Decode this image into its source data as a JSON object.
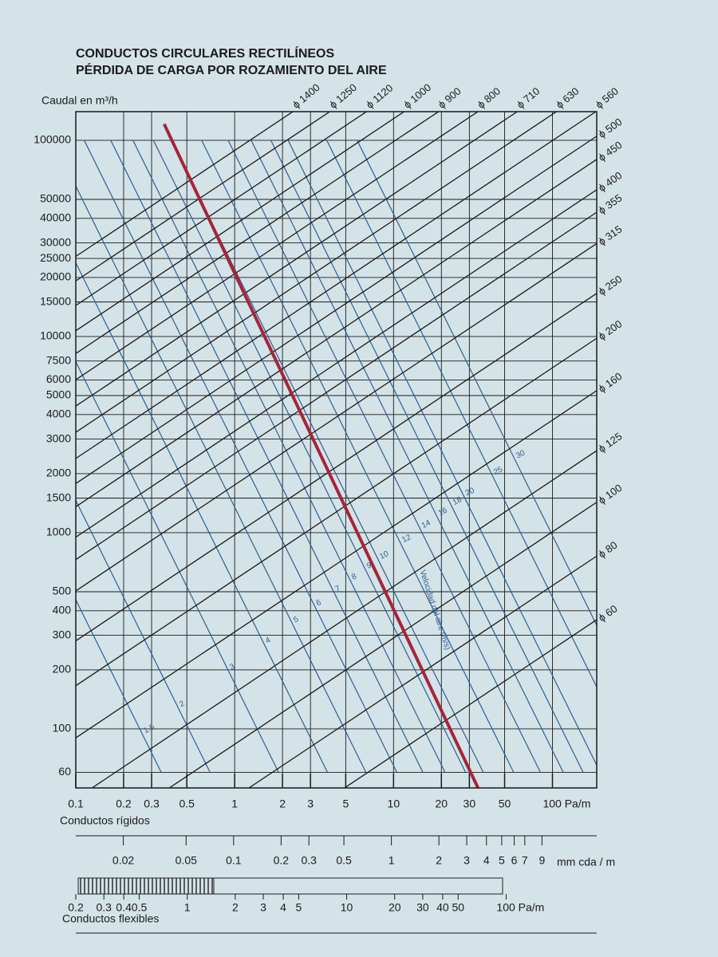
{
  "chart_data": {
    "type": "nomogram",
    "title": "CONDUCTOS CIRCULARES RECTILÍNEOS",
    "subtitle": "PÉRDIDA DE CARGA POR ROZAMIENTO DEL AIRE",
    "y_label": "Caudal en m³/h",
    "x_label": "Conductos rígidos",
    "log_x": true,
    "log_y": true,
    "grid": true,
    "xlim": [
      0.1,
      190
    ],
    "ylim": [
      50,
      140000
    ],
    "xticks": [
      0.1,
      0.2,
      0.3,
      0.5,
      1,
      2,
      3,
      5,
      10,
      20,
      30,
      50,
      {
        "value": 100,
        "label": "100 Pa/m"
      }
    ],
    "yticks": [
      60,
      100,
      200,
      300,
      400,
      500,
      1000,
      1500,
      2000,
      3000,
      4000,
      5000,
      6000,
      7500,
      10000,
      15000,
      20000,
      25000,
      30000,
      40000,
      50000,
      100000
    ],
    "x2_label": "mm cda / m",
    "x2lim": [
      0.01,
      20
    ],
    "x2ticks": [
      0.02,
      0.05,
      0.1,
      0.2,
      0.3,
      0.5,
      1,
      2,
      3,
      4,
      5,
      6,
      7,
      9
    ],
    "x3_label": "Conductos flexibles",
    "x3lim": [
      0.2,
      370
    ],
    "x3ticks": [
      0.2,
      0.3,
      0.4,
      0.5,
      1,
      2,
      3,
      4,
      5,
      10,
      20,
      30,
      40,
      50,
      {
        "value": 100,
        "label": "100 Pa/m"
      }
    ],
    "diameter_color": "#1a1a1a",
    "diameter_lines": [
      {
        "name": "ϕ 60",
        "x": [
          0.1,
          190
        ],
        "values": [
          6.1,
          360
        ]
      },
      {
        "name": "ϕ 80",
        "x": [
          0.1,
          190
        ],
        "values": [
          12.9,
          760
        ]
      },
      {
        "name": "ϕ 100",
        "x": [
          0.1,
          190
        ],
        "values": [
          24,
          1430
        ]
      },
      {
        "name": "ϕ 125",
        "x": [
          0.1,
          190
        ],
        "values": [
          44,
          2620
        ]
      },
      {
        "name": "ϕ 160",
        "x": [
          0.1,
          190
        ],
        "values": [
          90,
          5300
        ]
      },
      {
        "name": "ϕ 200",
        "x": [
          0.1,
          190
        ],
        "values": [
          166,
          9800
        ]
      },
      {
        "name": "ϕ 250",
        "x": [
          0.1,
          190
        ],
        "values": [
          281,
          16600
        ]
      },
      {
        "name": "ϕ 315",
        "x": [
          0.1,
          190
        ],
        "values": [
          505,
          29800
        ]
      },
      {
        "name": "ϕ 355",
        "x": [
          0.1,
          190
        ],
        "values": [
          729,
          43000
        ]
      },
      {
        "name": "ϕ 400",
        "x": [
          0.1,
          190
        ],
        "values": [
          949,
          56000
        ]
      },
      {
        "name": "ϕ 450",
        "x": [
          0.1,
          190
        ],
        "values": [
          1356,
          80000
        ]
      },
      {
        "name": "ϕ 500",
        "x": [
          0.1,
          190
        ],
        "values": [
          1780,
          105000
        ]
      },
      {
        "name": "ϕ 560",
        "x": [
          0.1,
          190
        ],
        "values": [
          2390,
          141000
        ]
      },
      {
        "name": "ϕ 630",
        "x": [
          0.1,
          190
        ],
        "values": [
          3250,
          192000
        ]
      },
      {
        "name": "ϕ 710",
        "x": [
          0.1,
          190
        ],
        "values": [
          4420,
          261000
        ]
      },
      {
        "name": "ϕ 800",
        "x": [
          0.1,
          190
        ],
        "values": [
          6020,
          355000
        ]
      },
      {
        "name": "ϕ 900",
        "x": [
          0.1,
          190
        ],
        "values": [
          8190,
          483000
        ]
      },
      {
        "name": "ϕ 1000",
        "x": [
          0.1,
          190
        ],
        "values": [
          10700,
          633000
        ]
      },
      {
        "name": "ϕ 1120",
        "x": [
          0.1,
          190
        ],
        "values": [
          14400,
          848000
        ]
      },
      {
        "name": "ϕ 1250",
        "x": [
          0.1,
          190
        ],
        "values": [
          19200,
          1130000
        ]
      },
      {
        "name": "ϕ 1400",
        "x": [
          0.1,
          190
        ],
        "values": [
          25600,
          1510000
        ]
      }
    ],
    "velocity_label": "Velocidad del aire (m/s)",
    "velocity_color": "#2f5f8f",
    "velocity_lines": [
      {
        "name": "1.5",
        "x": [
          0.0037,
          0.345
        ],
        "values": [
          100000,
          60
        ]
      },
      {
        "name": "2",
        "x": [
          0.0076,
          0.7
        ],
        "values": [
          100000,
          60
        ]
      },
      {
        "name": "3",
        "x": [
          0.0205,
          1.89
        ],
        "values": [
          100000,
          60
        ]
      },
      {
        "name": "4",
        "x": [
          0.0416,
          3.84
        ],
        "values": [
          100000,
          60
        ]
      },
      {
        "name": "5",
        "x": [
          0.072,
          6.7
        ],
        "values": [
          100000,
          60
        ]
      },
      {
        "name": "6",
        "x": [
          0.113,
          10.5
        ],
        "values": [
          100000,
          60
        ]
      },
      {
        "name": "7",
        "x": [
          0.166,
          15.3
        ],
        "values": [
          100000,
          60
        ]
      },
      {
        "name": "8",
        "x": [
          0.229,
          21.1
        ],
        "values": [
          100000,
          60
        ]
      },
      {
        "name": "9",
        "x": [
          0.308,
          28.4
        ],
        "values": [
          100000,
          60
        ]
      },
      {
        "name": "10",
        "x": [
          0.398,
          36.7
        ],
        "values": [
          100000,
          60
        ]
      },
      {
        "name": "12",
        "x": [
          0.62,
          57
        ],
        "values": [
          100000,
          60
        ]
      },
      {
        "name": "14",
        "x": [
          0.91,
          84
        ],
        "values": [
          100000,
          60
        ]
      },
      {
        "name": "16",
        "x": [
          1.27,
          117
        ],
        "values": [
          100000,
          60
        ]
      },
      {
        "name": "18",
        "x": [
          1.69,
          156
        ],
        "values": [
          100000,
          60
        ]
      },
      {
        "name": "20",
        "x": [
          2.17,
          200
        ],
        "values": [
          100000,
          60
        ]
      },
      {
        "name": "25",
        "x": [
          3.8,
          350
        ],
        "values": [
          100000,
          60
        ]
      },
      {
        "name": "30",
        "x": [
          5.9,
          545
        ],
        "values": [
          100000,
          60
        ]
      }
    ],
    "reference_line": {
      "color": "#a3263a",
      "x": [
        0.36,
        34
      ],
      "values": [
        121000,
        50
      ]
    }
  }
}
